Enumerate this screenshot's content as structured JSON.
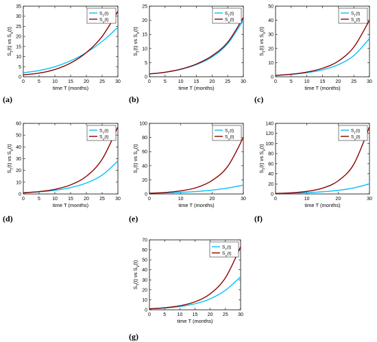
{
  "figure": {
    "panel_labels": [
      "(a)",
      "(b)",
      "(c)",
      "(d)",
      "(e)",
      "(f)",
      "(g)"
    ]
  },
  "colors": {
    "series_T": "#00bfff",
    "series_V": "#8b0000",
    "axis": "#000000",
    "legend_border": "#000000"
  },
  "chart_data": [
    {
      "id": "a",
      "type": "line",
      "xlabel": "time T (months)",
      "ylabel": "S_T(t) vs S_V(t)",
      "xlim": [
        0,
        30
      ],
      "ylim": [
        0,
        35
      ],
      "xticks": [
        0,
        5,
        10,
        15,
        20,
        25,
        30
      ],
      "yticks": [
        0,
        5,
        10,
        15,
        20,
        25,
        30,
        35
      ],
      "legend_position": "top-right",
      "x": [
        0,
        5,
        10,
        15,
        20,
        25,
        30
      ],
      "series": [
        {
          "name": "S_T(t)",
          "values": [
            2.0,
            3.1,
            5.0,
            7.9,
            12.0,
            17.5,
            24.5
          ]
        },
        {
          "name": "S_V(t)",
          "values": [
            1.0,
            1.8,
            3.6,
            6.8,
            12.0,
            20.0,
            32.5
          ]
        }
      ]
    },
    {
      "id": "b",
      "type": "line",
      "xlabel": "time T (months)",
      "ylabel": "S_T(t) vs S_V(t)",
      "xlim": [
        0,
        30
      ],
      "ylim": [
        0,
        25
      ],
      "xticks": [
        0,
        5,
        10,
        15,
        20,
        25,
        30
      ],
      "yticks": [
        0,
        5,
        10,
        15,
        20,
        25
      ],
      "legend_position": "top-right",
      "x": [
        0,
        5,
        10,
        15,
        20,
        25,
        30
      ],
      "series": [
        {
          "name": "S_T(t)",
          "values": [
            1.0,
            1.6,
            2.6,
            4.3,
            7.0,
            11.7,
            20.0
          ]
        },
        {
          "name": "S_V(t)",
          "values": [
            1.0,
            1.6,
            2.7,
            4.5,
            7.4,
            12.2,
            21.0
          ]
        }
      ]
    },
    {
      "id": "c",
      "type": "line",
      "xlabel": "time T (months)",
      "ylabel": "S_T(t) vs S_V(t)",
      "xlim": [
        0,
        30
      ],
      "ylim": [
        0,
        50
      ],
      "xticks": [
        0,
        5,
        10,
        15,
        20,
        25,
        30
      ],
      "yticks": [
        0,
        10,
        20,
        30,
        40,
        50
      ],
      "legend_position": "top-right",
      "x": [
        0,
        5,
        10,
        15,
        20,
        25,
        30
      ],
      "series": [
        {
          "name": "S_T(t)",
          "values": [
            1.0,
            1.7,
            2.9,
            4.9,
            8.5,
            15.0,
            27.0
          ]
        },
        {
          "name": "S_V(t)",
          "values": [
            1.0,
            1.8,
            3.3,
            6.0,
            11.0,
            21.0,
            40.0
          ]
        }
      ]
    },
    {
      "id": "d",
      "type": "line",
      "xlabel": "time T (months)",
      "ylabel": "S_T(t) vs S_V(t)",
      "xlim": [
        0,
        30
      ],
      "ylim": [
        0,
        60
      ],
      "xticks": [
        0,
        5,
        10,
        15,
        20,
        25,
        30
      ],
      "yticks": [
        0,
        10,
        20,
        30,
        40,
        50,
        60
      ],
      "legend_position": "top-right",
      "x": [
        0,
        5,
        10,
        15,
        20,
        25,
        30
      ],
      "series": [
        {
          "name": "S_T(t)",
          "values": [
            1.0,
            1.8,
            3.1,
            5.4,
            9.3,
            16.0,
            28.0
          ]
        },
        {
          "name": "S_V(t)",
          "values": [
            1.0,
            2.0,
            3.9,
            7.7,
            15.0,
            29.5,
            57.0
          ]
        }
      ]
    },
    {
      "id": "e",
      "type": "line",
      "xlabel": "time T (months)",
      "ylabel": "S_T(t) vs S_V(t)",
      "xlim": [
        0,
        30
      ],
      "ylim": [
        0,
        100
      ],
      "xticks": [
        0,
        10,
        20,
        30
      ],
      "yticks": [
        0,
        20,
        40,
        60,
        80,
        100
      ],
      "legend_position": "top-right",
      "x": [
        0,
        5,
        10,
        15,
        20,
        25,
        30
      ],
      "series": [
        {
          "name": "S_T(t)",
          "values": [
            1.0,
            1.5,
            2.3,
            3.5,
            5.4,
            8.3,
            12.5
          ]
        },
        {
          "name": "S_V(t)",
          "values": [
            1.0,
            2.1,
            4.4,
            9.0,
            19.0,
            39.0,
            80.0
          ]
        }
      ]
    },
    {
      "id": "f",
      "type": "line",
      "xlabel": "time T (months)",
      "ylabel": "S_T(t) vs S_V(t)",
      "xlim": [
        0,
        30
      ],
      "ylim": [
        0,
        140
      ],
      "xticks": [
        0,
        10,
        20,
        30
      ],
      "yticks": [
        0,
        20,
        40,
        60,
        80,
        100,
        120,
        140
      ],
      "legend_position": "top-right",
      "x": [
        0,
        5,
        10,
        15,
        20,
        25,
        30
      ],
      "series": [
        {
          "name": "S_T(t)",
          "values": [
            1.0,
            1.6,
            2.6,
            4.3,
            7.2,
            12.0,
            20.0
          ]
        },
        {
          "name": "S_V(t)",
          "values": [
            1.0,
            2.3,
            5.1,
            11.5,
            26.0,
            59.0,
            133.0
          ]
        }
      ]
    },
    {
      "id": "g",
      "type": "line",
      "xlabel": "time T (months)",
      "ylabel": "S_T(t) vs S_V(t)",
      "xlim": [
        0,
        30
      ],
      "ylim": [
        0,
        70
      ],
      "xticks": [
        0,
        5,
        10,
        15,
        20,
        25,
        30
      ],
      "yticks": [
        0,
        10,
        20,
        30,
        40,
        50,
        60,
        70
      ],
      "legend_position": "top-right",
      "x": [
        0,
        5,
        10,
        15,
        20,
        25,
        30
      ],
      "series": [
        {
          "name": "S_T(t)",
          "values": [
            1.0,
            1.8,
            3.3,
            6.0,
            11.0,
            19.5,
            33.0
          ]
        },
        {
          "name": "S_V(t)",
          "values": [
            1.0,
            2.0,
            4.0,
            8.0,
            16.0,
            32.0,
            63.0
          ]
        }
      ]
    }
  ]
}
